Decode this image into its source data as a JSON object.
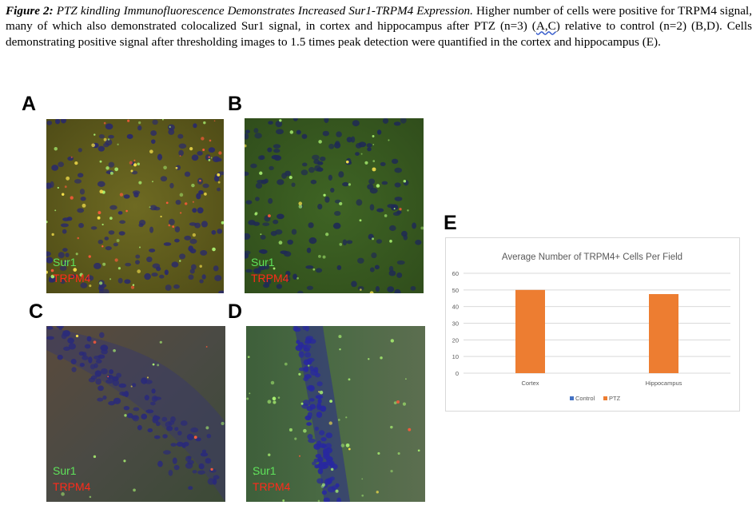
{
  "caption": {
    "label": "Figure 2:",
    "title": "PTZ kindling Immunofluorescence Demonstrates Increased Sur1-TRPM4 Expression.",
    "text_1": "Higher number of cells were positive for TRPM4 signal, many of which also demonstrated colocalized Sur1 signal, in cortex and hippocampus after PTZ (n=3) (",
    "underlined": "A,C",
    "text_2": ") relative to control (n=2) (B,D). Cells demonstrating positive signal after thresholding images to 1.5 times peak detection were quantified in the cortex and hippocampus (E)."
  },
  "panels": [
    {
      "letter": "A",
      "green": "Sur1",
      "red": "TRPM4"
    },
    {
      "letter": "B",
      "green": "Sur1",
      "red": "TRPM4"
    },
    {
      "letter": "C",
      "green": "Sur1",
      "red": "TRPM4"
    },
    {
      "letter": "D",
      "green": "Sur1",
      "red": "TRPM4"
    }
  ],
  "chart_panel_letter": "E",
  "chart_data": {
    "type": "bar",
    "title": "Average Number of TRPM4+ Cells Per Field",
    "categories": [
      "Cortex",
      "Hippocampus"
    ],
    "series": [
      {
        "name": "Control",
        "color": "#4472c4",
        "values": [
          0,
          0
        ]
      },
      {
        "name": "PTZ",
        "color": "#ed7d31",
        "values": [
          50,
          47.5
        ]
      }
    ],
    "ylim": [
      0,
      60
    ],
    "yticks": [
      "0",
      "10",
      "20",
      "30",
      "40",
      "50",
      "60"
    ],
    "grid": true,
    "legend_position": "bottom"
  }
}
